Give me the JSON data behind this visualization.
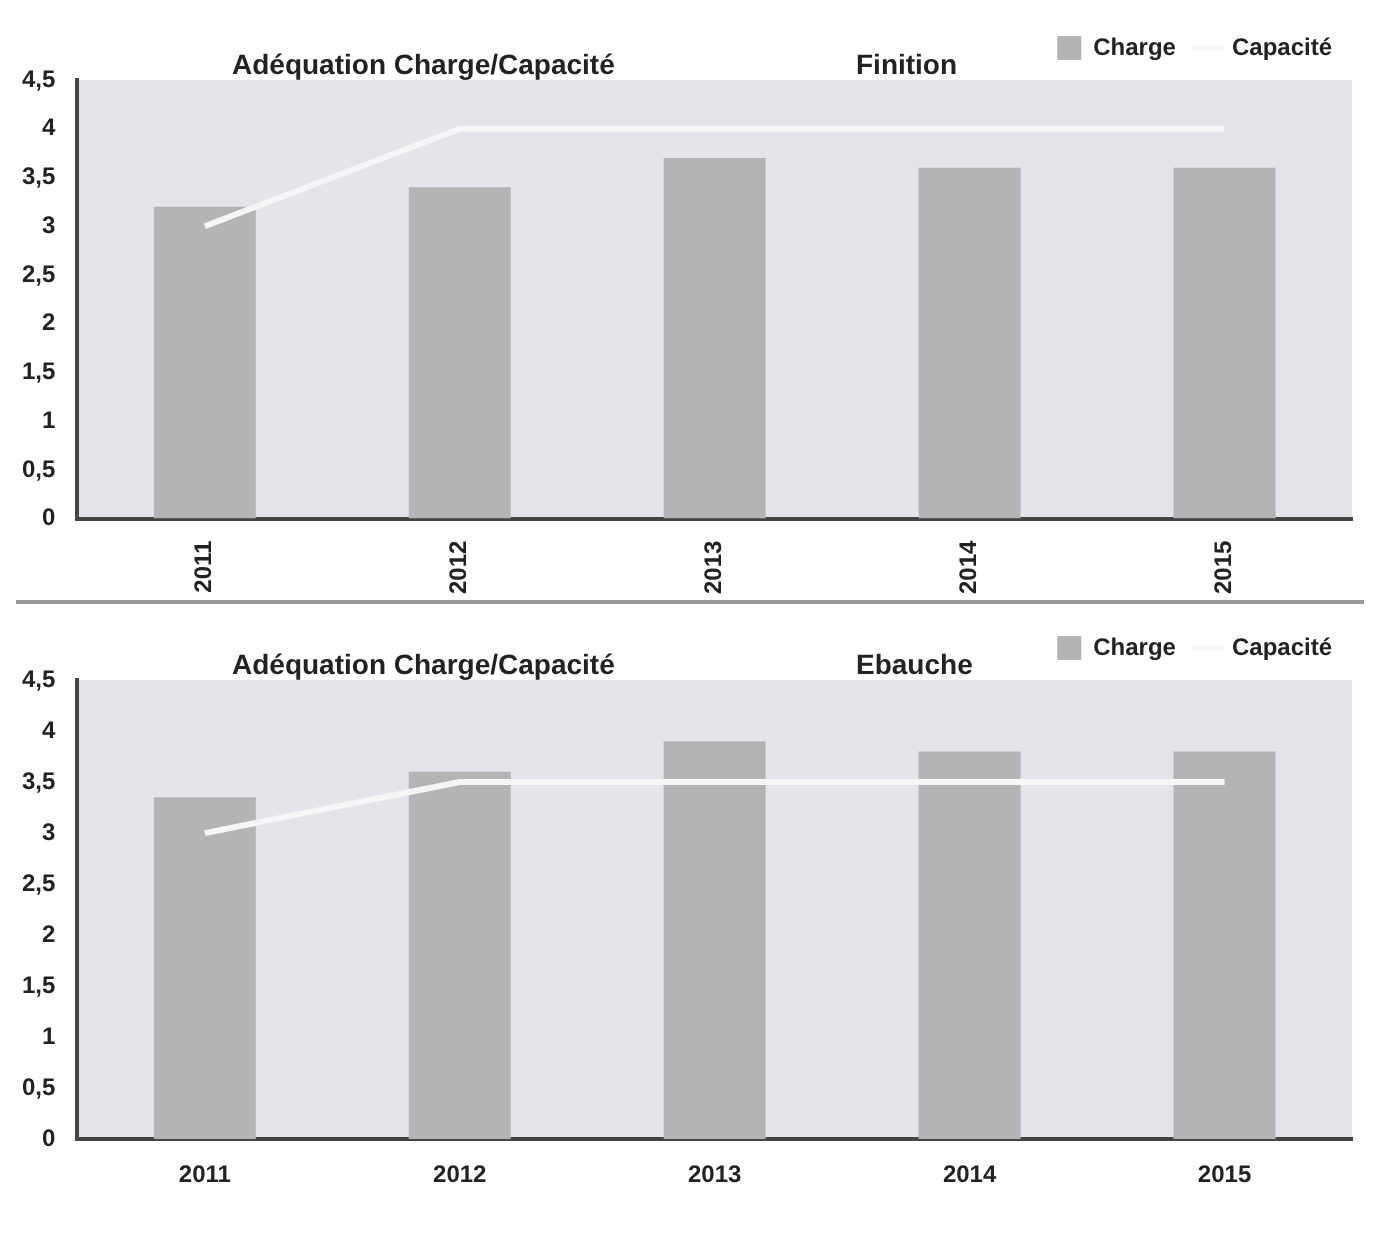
{
  "chart_data": [
    {
      "type": "bar",
      "title": "Adéquation Charge/Capacité",
      "subtitle": "Finition",
      "categories": [
        "2011",
        "2012",
        "2013",
        "2014",
        "2015"
      ],
      "series": [
        {
          "name": "Charge",
          "color": "#b4b4b4",
          "values": [
            3.2,
            3.4,
            3.7,
            3.6,
            3.6
          ]
        },
        {
          "name": "Capacité",
          "type": "line",
          "color": "#f6f6f6",
          "values": [
            3.0,
            4.0,
            4.0,
            4.0,
            4.0
          ]
        }
      ],
      "ylim": [
        0,
        4.5
      ],
      "yticks": [
        0,
        {
          "value": 0.5,
          "label": "0,5"
        },
        1,
        {
          "value": 1.5,
          "label": "1,5"
        },
        2,
        {
          "value": 2.5,
          "label": "2,5"
        },
        3,
        {
          "value": 3.5,
          "label": "3,5"
        },
        4,
        {
          "value": 4.5,
          "label": "4,5"
        }
      ],
      "grid": false,
      "legend": "top right",
      "marker": "none"
    },
    {
      "type": "bar",
      "title": "Adéquation Charge/Capacité",
      "subtitle": "Ebauche",
      "categories": [
        "2011",
        "2012",
        "2013",
        "2014",
        "2015"
      ],
      "series": [
        {
          "name": "Charge",
          "color": "#b4b4b4",
          "values": [
            3.35,
            3.6,
            3.9,
            3.8,
            3.8
          ]
        },
        {
          "name": "Capacité",
          "type": "line",
          "color": "#f6f6f6",
          "values": [
            3.0,
            3.5,
            3.5,
            3.5,
            3.5
          ]
        }
      ],
      "ylim": [
        0,
        4.5
      ],
      "yticks": [
        0,
        {
          "value": 0.5,
          "label": "0,5"
        },
        1,
        {
          "value": 1.5,
          "label": "1,5"
        },
        2,
        {
          "value": 2.5,
          "label": "2,5"
        },
        3,
        {
          "value": 3.5,
          "label": "3,5"
        },
        4,
        {
          "value": 4.5,
          "label": "4,5"
        }
      ],
      "grid": false,
      "legend": "top right",
      "marker": "none"
    }
  ]
}
